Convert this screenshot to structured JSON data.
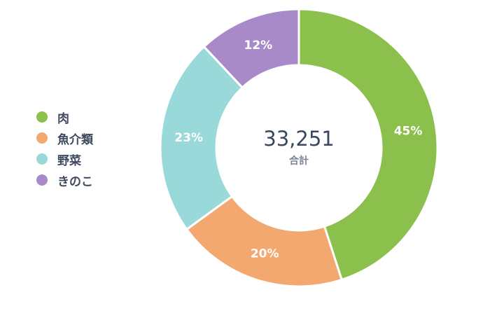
{
  "chart_data": {
    "type": "pie",
    "variant": "donut",
    "categories": [
      "肉",
      "魚介類",
      "野菜",
      "きのこ"
    ],
    "values": [
      45,
      20,
      23,
      12
    ],
    "value_labels": [
      "45%",
      "20%",
      "23%",
      "12%"
    ],
    "colors": [
      "#8bc04c",
      "#f2a86f",
      "#99d9d9",
      "#a98ac8"
    ],
    "center_value": "33,251",
    "center_caption": "合計",
    "legend_position": "left",
    "start_angle_deg": 0,
    "direction": "clockwise"
  }
}
